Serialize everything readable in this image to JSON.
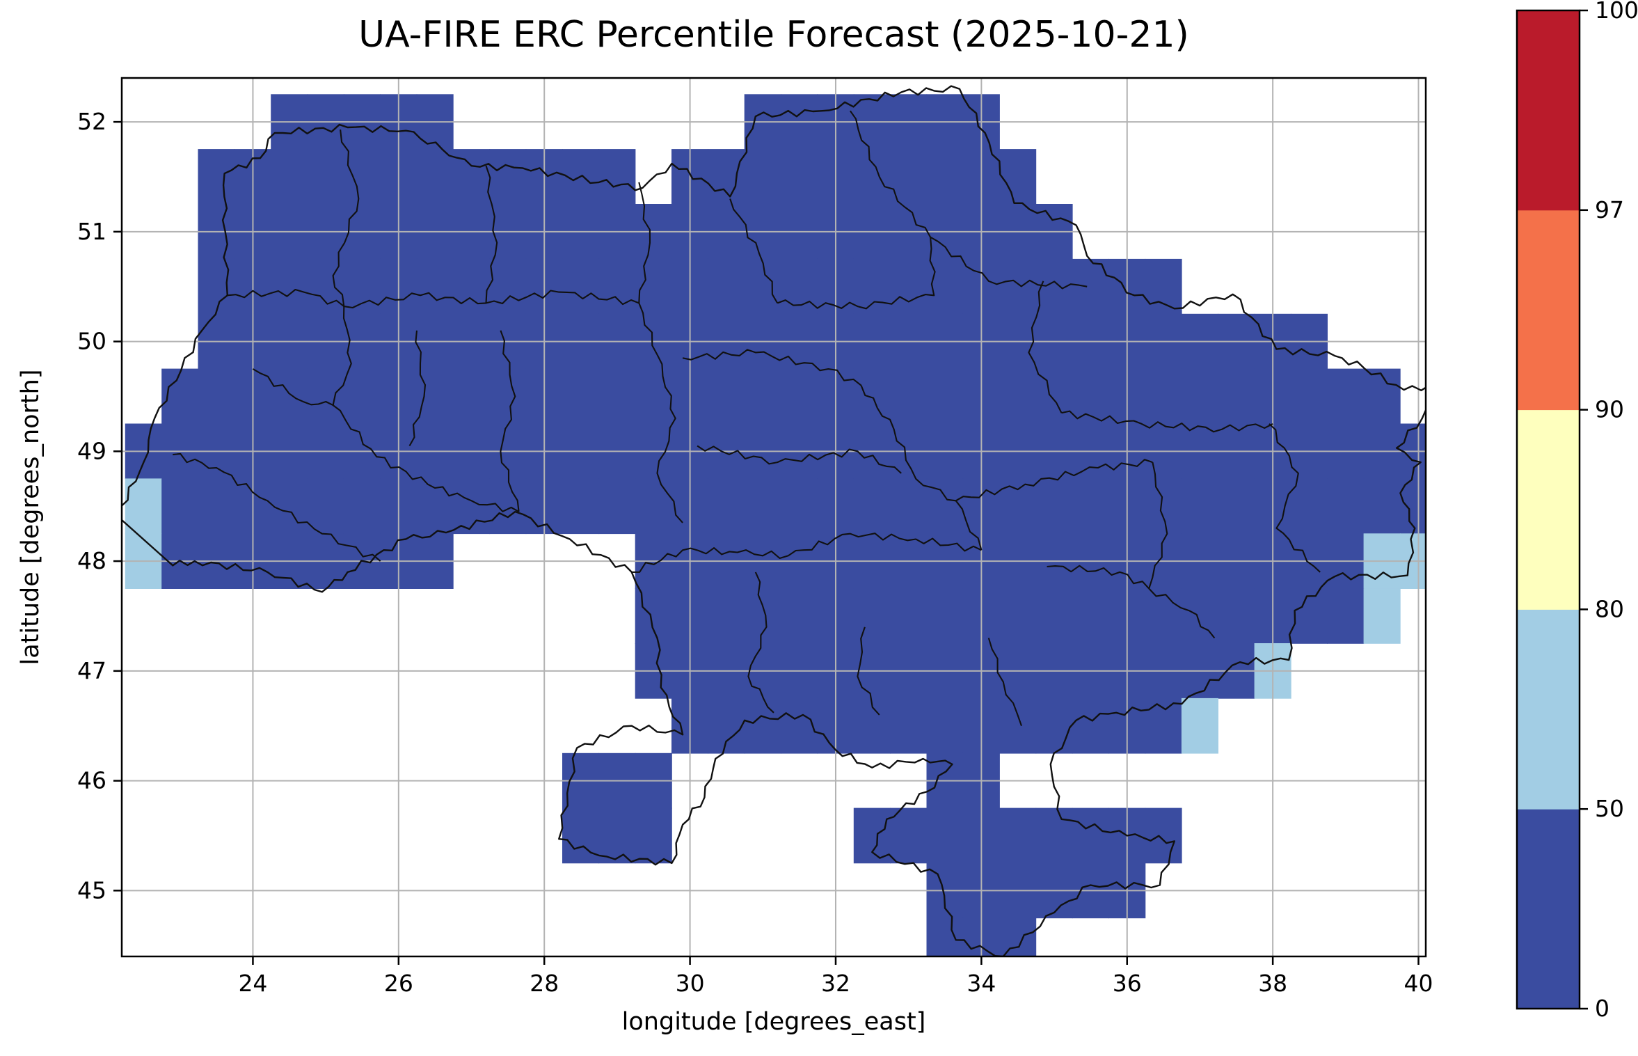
{
  "chart_data": {
    "type": "heatmap",
    "title": "UA-FIRE ERC Percentile Forecast (2025-10-21)",
    "xlabel": "longitude [degrees_east]",
    "ylabel": "latitude [degrees_north]",
    "xlim": [
      22.2,
      40.1
    ],
    "ylim": [
      44.4,
      52.4
    ],
    "xticks": [
      24,
      26,
      28,
      30,
      32,
      34,
      36,
      38,
      40
    ],
    "yticks": [
      45,
      46,
      47,
      48,
      49,
      50,
      51,
      52
    ],
    "grid": true,
    "style": {
      "background": "#ffffff",
      "grid_color": "#b3b3b3",
      "border_color": "#111111",
      "frame_color": "#000000"
    },
    "colorbar": {
      "boundaries": [
        0,
        50,
        80,
        90,
        97,
        100
      ],
      "tick_labels": [
        "0",
        "50",
        "80",
        "90",
        "97",
        "100"
      ],
      "colors": [
        "#3a4ca0",
        "#a2cde4",
        "#feffbe",
        "#f4714a",
        "#ba1b2b"
      ],
      "spacing": "uniform",
      "position": "right"
    },
    "raster": {
      "lon0": 22.25,
      "lat0": 52.25,
      "dlon": 0.5,
      "dlat": 0.5,
      "legend": {
        "b": "ERC percentile 0-50",
        "l": "ERC percentile 50-80",
        ".": "no data"
      },
      "rows": [
        "....bbbbb........bbbbbbb............",
        "..bbbbbbbbbbbb.bbbbbbbbbb...........",
        "..bbbbbbbbbbbbbbbbbbbbbbbb..........",
        "..bbbbbbbbbbbbbbbbbbbbbbbbbbb.......",
        "..bbbbbbbbbbbbbbbbbbbbbbbbbbbbbbb...",
        ".bbbbbbbbbbbbbbbbbbbbbbbbbbbbbbbbbb",
        "bbbbbbbbbbbbbbbbbbbbbbbbbbbbbbbbbbbb",
        "lbbbbbbbbbbbbbbbbbbbbbbbbbbbbbbbbbbb",
        "lbbbbbbbb.....bbbbbbbbbbbbbbbbbbbbll",
        "..............bbbbbbbbbbbbbbbbbbbbl.",
        "..............bbbbbbbbbbbbbbbbbl....",
        "...............bbbbbbbbbbbbbbl......",
        "............bbb.......bb............",
        "............bbb.....bbbbbbbbb.......",
        "......................bbbbbb........",
        "......................bbb..........."
      ]
    },
    "borders": {
      "outer": [
        [
          22.14,
          48.41
        ],
        [
          22.5,
          48.9
        ],
        [
          22.65,
          49.3
        ],
        [
          23.3,
          50.1
        ],
        [
          23.65,
          50.42
        ],
        [
          23.62,
          51.0
        ],
        [
          23.61,
          51.53
        ],
        [
          24.1,
          51.67
        ],
        [
          24.3,
          51.9
        ],
        [
          25.3,
          51.95
        ],
        [
          26.1,
          51.92
        ],
        [
          26.6,
          51.75
        ],
        [
          27.0,
          51.6
        ],
        [
          27.7,
          51.58
        ],
        [
          28.75,
          51.45
        ],
        [
          29.35,
          51.4
        ],
        [
          29.75,
          51.62
        ],
        [
          30.55,
          51.32
        ],
        [
          30.9,
          52.05
        ],
        [
          31.8,
          52.1
        ],
        [
          32.9,
          52.27
        ],
        [
          33.7,
          52.3
        ],
        [
          34.05,
          51.9
        ],
        [
          34.45,
          51.26
        ],
        [
          35.3,
          51.06
        ],
        [
          35.45,
          50.78
        ],
        [
          36.1,
          50.42
        ],
        [
          36.65,
          50.3
        ],
        [
          37.45,
          50.43
        ],
        [
          38.05,
          49.93
        ],
        [
          38.85,
          49.87
        ],
        [
          39.25,
          49.76
        ],
        [
          39.8,
          49.56
        ],
        [
          40.15,
          49.6
        ],
        [
          40.05,
          49.3
        ],
        [
          39.7,
          49.03
        ],
        [
          40.03,
          48.9
        ],
        [
          39.75,
          48.62
        ],
        [
          39.95,
          48.3
        ],
        [
          39.85,
          47.87
        ],
        [
          38.85,
          47.86
        ],
        [
          38.3,
          47.55
        ],
        [
          38.22,
          47.1
        ],
        [
          37.55,
          47.08
        ],
        [
          36.75,
          46.7
        ],
        [
          35.85,
          46.62
        ],
        [
          35.3,
          46.55
        ],
        [
          34.95,
          46.15
        ],
        [
          35.1,
          45.65
        ],
        [
          36.0,
          45.5
        ],
        [
          36.65,
          45.45
        ],
        [
          36.45,
          45.05
        ],
        [
          35.5,
          45.05
        ],
        [
          35.0,
          44.8
        ],
        [
          34.3,
          44.4
        ],
        [
          33.65,
          44.55
        ],
        [
          33.4,
          45.15
        ],
        [
          32.5,
          45.35
        ],
        [
          32.7,
          45.65
        ],
        [
          33.25,
          45.9
        ],
        [
          33.6,
          46.15
        ],
        [
          33.2,
          46.2
        ],
        [
          32.5,
          46.12
        ],
        [
          32.0,
          46.28
        ],
        [
          31.55,
          46.6
        ],
        [
          30.75,
          46.55
        ],
        [
          30.35,
          46.2
        ],
        [
          30.2,
          45.85
        ],
        [
          29.9,
          45.6
        ],
        [
          29.75,
          45.25
        ],
        [
          28.75,
          45.32
        ],
        [
          28.2,
          45.47
        ],
        [
          28.45,
          46.3
        ],
        [
          29.2,
          46.5
        ],
        [
          29.9,
          46.42
        ],
        [
          29.6,
          46.85
        ],
        [
          29.55,
          47.3
        ],
        [
          29.2,
          47.9
        ],
        [
          28.35,
          48.2
        ],
        [
          27.6,
          48.45
        ],
        [
          26.65,
          48.26
        ],
        [
          26.1,
          48.2
        ],
        [
          25.3,
          47.9
        ],
        [
          24.95,
          47.72
        ],
        [
          24.2,
          47.9
        ],
        [
          23.2,
          48.0
        ],
        [
          22.9,
          47.96
        ]
      ],
      "internal": [
        [
          [
            25.2,
            51.93
          ],
          [
            25.45,
            51.3
          ],
          [
            25.1,
            50.6
          ],
          [
            25.25,
            50.32
          ]
        ],
        [
          [
            27.2,
            51.6
          ],
          [
            27.35,
            50.9
          ],
          [
            27.2,
            50.35
          ]
        ],
        [
          [
            29.3,
            51.45
          ],
          [
            29.45,
            50.9
          ],
          [
            29.3,
            50.35
          ],
          [
            29.55,
            49.88
          ]
        ],
        [
          [
            30.55,
            51.3
          ],
          [
            30.95,
            50.8
          ],
          [
            31.2,
            50.35
          ]
        ],
        [
          [
            32.2,
            52.1
          ],
          [
            32.6,
            51.5
          ],
          [
            33.3,
            50.95
          ]
        ],
        [
          [
            33.3,
            50.95
          ],
          [
            34.1,
            50.55
          ],
          [
            35.45,
            50.5
          ]
        ],
        [
          [
            23.65,
            50.42
          ],
          [
            24.7,
            50.45
          ],
          [
            25.25,
            50.32
          ],
          [
            26.3,
            50.42
          ],
          [
            27.2,
            50.35
          ],
          [
            28.2,
            50.45
          ],
          [
            29.3,
            50.35
          ]
        ],
        [
          [
            31.2,
            50.35
          ],
          [
            32.3,
            50.32
          ],
          [
            33.35,
            50.42
          ],
          [
            33.3,
            50.95
          ]
        ],
        [
          [
            25.25,
            50.32
          ],
          [
            25.35,
            49.8
          ],
          [
            25.1,
            49.42
          ]
        ],
        [
          [
            26.25,
            50.1
          ],
          [
            26.35,
            49.5
          ],
          [
            26.15,
            49.05
          ]
        ],
        [
          [
            27.4,
            50.1
          ],
          [
            27.6,
            49.5
          ],
          [
            27.4,
            49.0
          ],
          [
            27.65,
            48.45
          ]
        ],
        [
          [
            29.55,
            49.88
          ],
          [
            29.8,
            49.3
          ],
          [
            29.55,
            48.8
          ],
          [
            29.9,
            48.35
          ]
        ],
        [
          [
            29.9,
            49.85
          ],
          [
            30.9,
            49.9
          ],
          [
            31.9,
            49.75
          ],
          [
            32.35,
            49.6
          ]
        ],
        [
          [
            30.1,
            49.05
          ],
          [
            31.2,
            48.9
          ],
          [
            32.3,
            49.0
          ],
          [
            32.9,
            48.8
          ]
        ],
        [
          [
            32.35,
            49.6
          ],
          [
            32.8,
            49.2
          ],
          [
            33.1,
            48.75
          ],
          [
            33.65,
            48.55
          ],
          [
            34.0,
            48.1
          ]
        ],
        [
          [
            34.85,
            50.55
          ],
          [
            34.65,
            49.9
          ],
          [
            35.1,
            49.35
          ]
        ],
        [
          [
            35.1,
            49.35
          ],
          [
            36.2,
            49.25
          ],
          [
            37.3,
            49.2
          ],
          [
            38.0,
            49.25
          ]
        ],
        [
          [
            36.35,
            48.9
          ],
          [
            36.55,
            48.25
          ],
          [
            36.3,
            47.75
          ]
        ],
        [
          [
            37.95,
            49.25
          ],
          [
            38.35,
            48.8
          ],
          [
            38.05,
            48.3
          ],
          [
            38.65,
            47.9
          ]
        ],
        [
          [
            33.65,
            48.55
          ],
          [
            34.6,
            48.7
          ],
          [
            35.6,
            48.85
          ],
          [
            36.35,
            48.9
          ]
        ],
        [
          [
            34.9,
            47.95
          ],
          [
            35.9,
            47.9
          ],
          [
            36.3,
            47.75
          ]
        ],
        [
          [
            36.3,
            47.75
          ],
          [
            36.85,
            47.55
          ],
          [
            37.2,
            47.3
          ]
        ],
        [
          [
            34.1,
            47.3
          ],
          [
            34.3,
            46.9
          ],
          [
            34.55,
            46.5
          ]
        ],
        [
          [
            32.4,
            47.4
          ],
          [
            32.3,
            46.95
          ],
          [
            32.6,
            46.6
          ]
        ],
        [
          [
            30.9,
            47.9
          ],
          [
            31.05,
            47.4
          ],
          [
            30.8,
            46.95
          ],
          [
            31.15,
            46.62
          ]
        ],
        [
          [
            29.2,
            47.9
          ],
          [
            29.9,
            48.1
          ],
          [
            30.65,
            48.08
          ],
          [
            31.35,
            48.05
          ],
          [
            32.2,
            48.25
          ],
          [
            33.1,
            48.2
          ],
          [
            34.0,
            48.1
          ]
        ],
        [
          [
            22.9,
            48.97
          ],
          [
            23.5,
            48.85
          ],
          [
            24.2,
            48.55
          ],
          [
            24.95,
            48.25
          ],
          [
            25.75,
            48.0
          ]
        ],
        [
          [
            24.0,
            49.75
          ],
          [
            24.7,
            49.45
          ],
          [
            25.1,
            49.42
          ]
        ],
        [
          [
            25.1,
            49.42
          ],
          [
            25.7,
            48.95
          ],
          [
            26.4,
            48.7
          ],
          [
            27.0,
            48.55
          ],
          [
            27.65,
            48.45
          ]
        ]
      ]
    }
  }
}
